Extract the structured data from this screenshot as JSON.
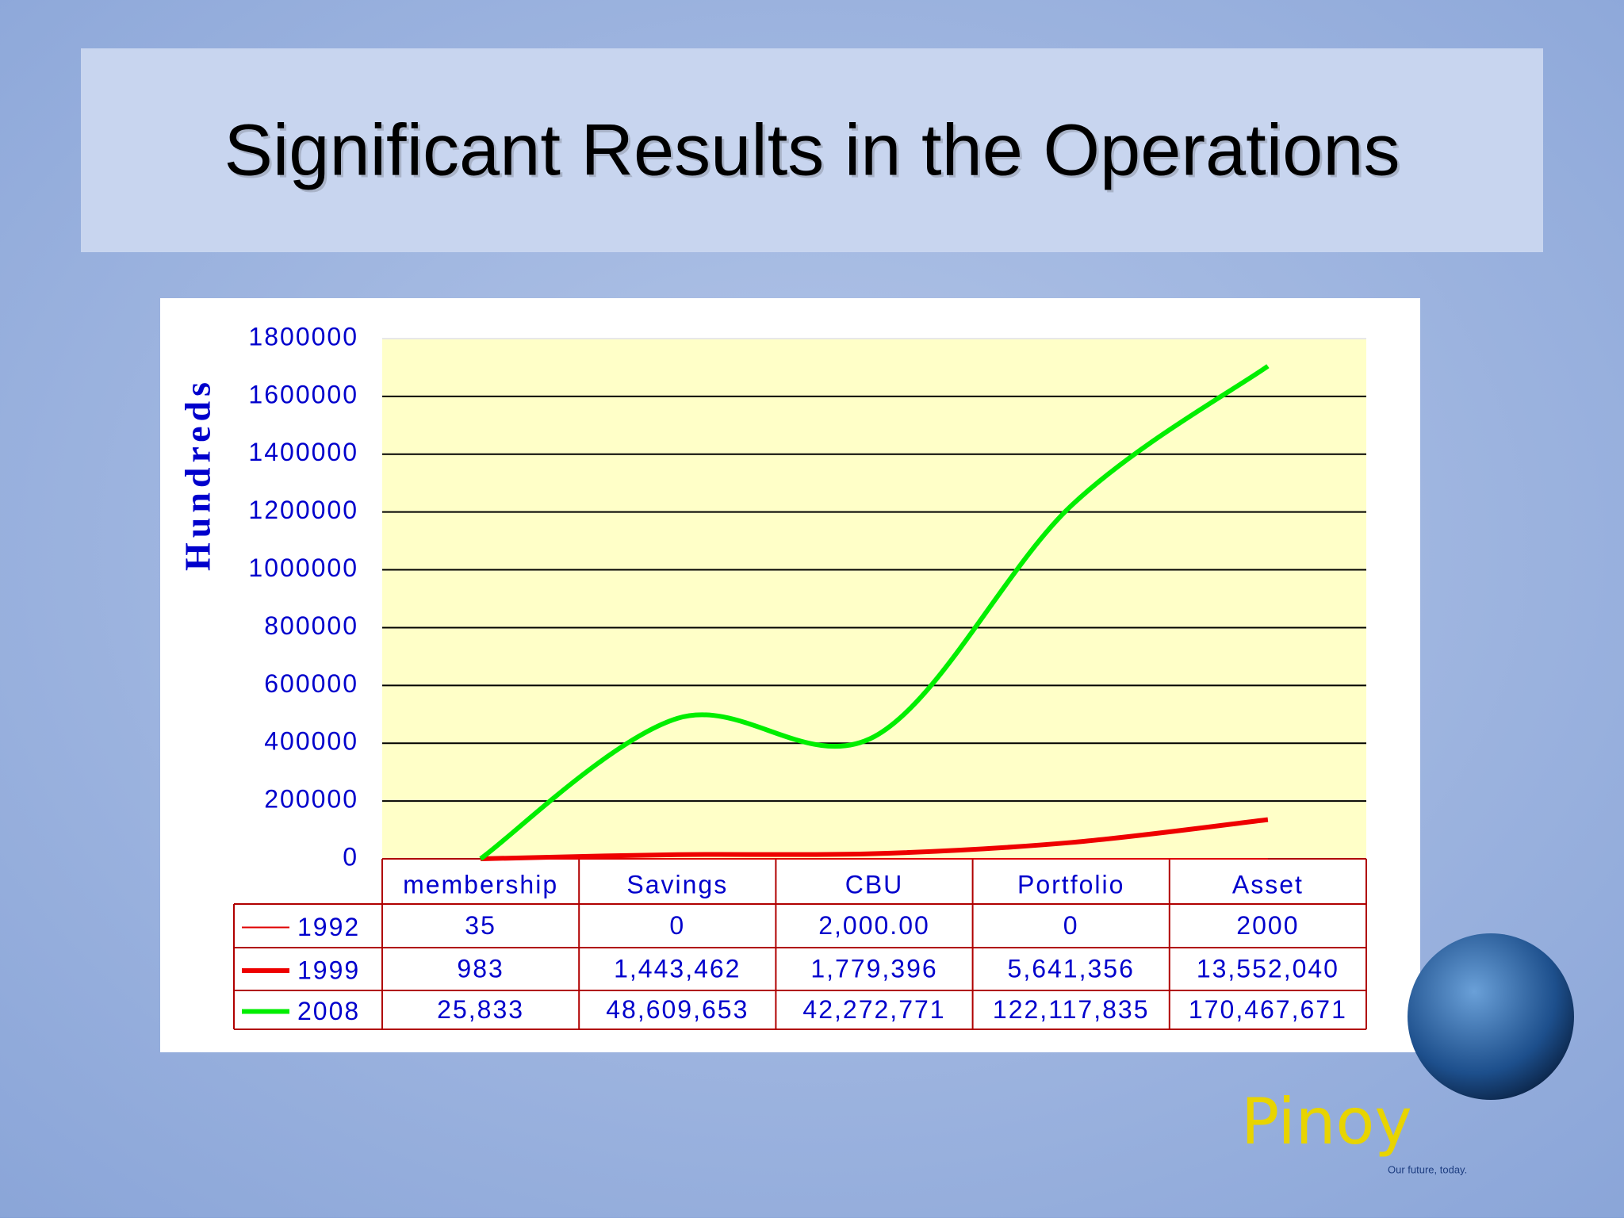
{
  "chart_data": {
    "type": "line",
    "title": "Significant Results in the Operations",
    "y_label": "Hundreds",
    "categories": [
      "membership",
      "Savings",
      "CBU",
      "Portfolio",
      "Asset"
    ],
    "series": [
      {
        "name": "1992",
        "color": "#e00000",
        "width": 2,
        "values": [
          0.35,
          0,
          20,
          0,
          20
        ],
        "value_labels": [
          "35",
          "0",
          "2,000.00",
          "0",
          "2000"
        ]
      },
      {
        "name": "1999",
        "color": "#ee0000",
        "width": 6,
        "values": [
          9.83,
          14434.62,
          17793.96,
          56413.56,
          135520.4
        ],
        "value_labels": [
          "983",
          "1,443,462",
          "1,779,396",
          "5,641,356",
          "13,552,040"
        ]
      },
      {
        "name": "2008",
        "color": "#00ee00",
        "width": 6,
        "values": [
          258.33,
          486096.53,
          422727.71,
          1221178.35,
          1704676.71
        ],
        "value_labels": [
          "25,833",
          "48,609,653",
          "42,272,771",
          "122,117,835",
          "170,467,671"
        ]
      }
    ],
    "ylim": [
      0,
      1800000
    ],
    "yticks": [
      0,
      200000,
      400000,
      600000,
      800000,
      1000000,
      1200000,
      1400000,
      1600000,
      1800000
    ],
    "grid": true,
    "logo": {
      "brand": "Pinoy",
      "tagline": "Our future, today."
    }
  }
}
